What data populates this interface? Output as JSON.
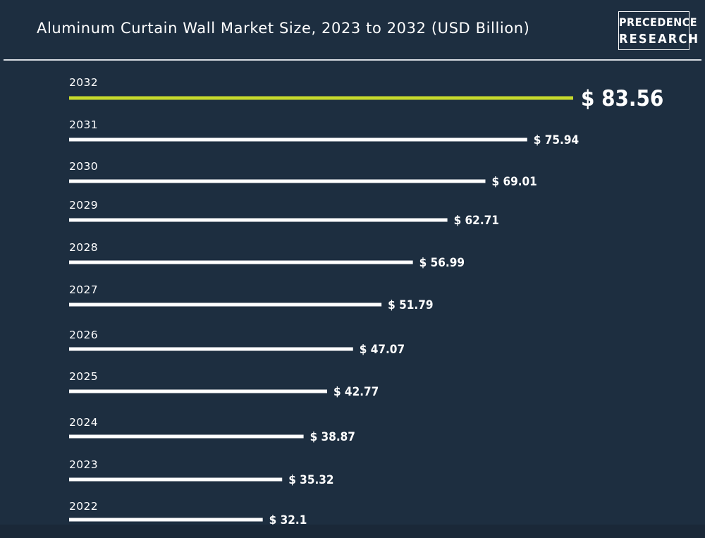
{
  "title": "Aluminum Curtain Wall Market Size, 2023 to 2032 (USD Billion)",
  "logo": {
    "line1": "PRECEDENCE",
    "line2": "RESEARCH"
  },
  "colors": {
    "background": "#1d2e40",
    "bar": "#ffffff",
    "highlight_bar": "#c6d92c",
    "text": "#ffffff"
  },
  "chart_data": {
    "type": "bar",
    "orientation": "horizontal",
    "title": "Aluminum Curtain Wall Market Size, 2023 to 2032 (USD Billion)",
    "categories": [
      "2032",
      "2031",
      "2030",
      "2029",
      "2028",
      "2027",
      "2026",
      "2025",
      "2024",
      "2023",
      "2022"
    ],
    "values": [
      83.56,
      75.94,
      69.01,
      62.71,
      56.99,
      51.79,
      47.07,
      42.77,
      38.87,
      35.32,
      32.1
    ],
    "value_labels": [
      "$ 83.56",
      "$ 75.94",
      "$ 69.01",
      "$ 62.71",
      "$ 56.99",
      "$ 51.79",
      "$ 47.07",
      "$ 42.77",
      "$ 38.87",
      "$ 35.32",
      "$ 32.1"
    ],
    "highlight_category": "2032",
    "xlabel": "",
    "ylabel": "",
    "grid": false
  }
}
